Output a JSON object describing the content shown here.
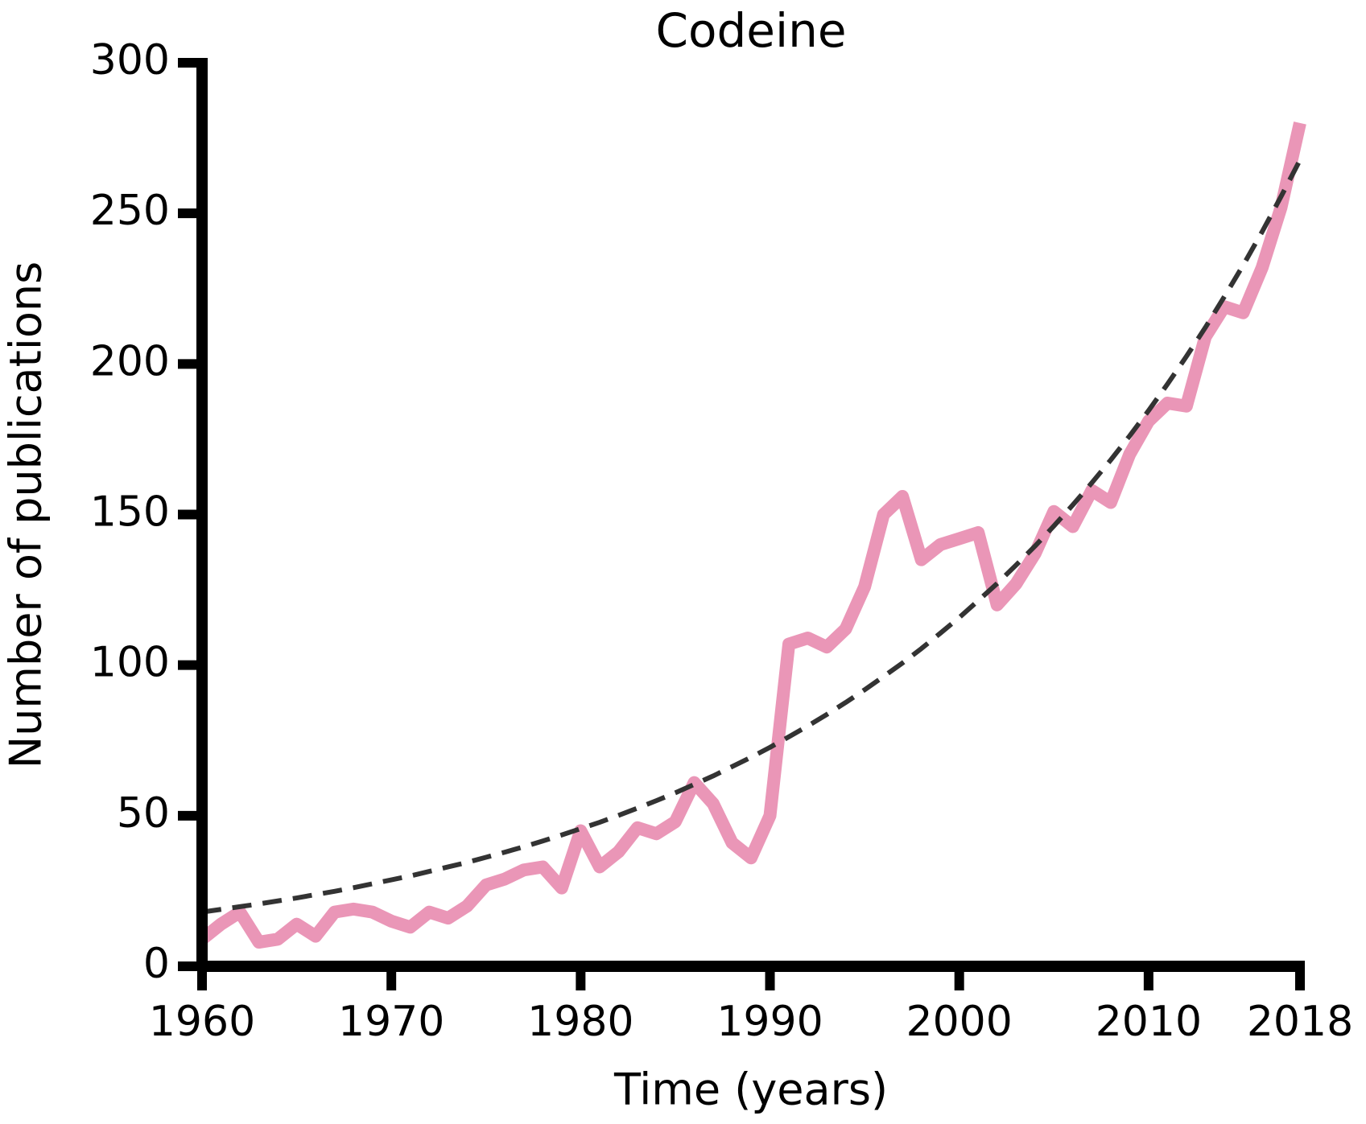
{
  "chart_data": {
    "type": "line",
    "title": "Codeine",
    "x_label": "Time (years)",
    "y_label": "Number of publications",
    "x": [
      1960,
      1961,
      1962,
      1963,
      1964,
      1965,
      1966,
      1967,
      1968,
      1969,
      1970,
      1971,
      1972,
      1973,
      1974,
      1975,
      1976,
      1977,
      1978,
      1979,
      1980,
      1981,
      1982,
      1983,
      1984,
      1985,
      1986,
      1987,
      1988,
      1989,
      1990,
      1991,
      1992,
      1993,
      1994,
      1995,
      1996,
      1997,
      1998,
      1999,
      2000,
      2001,
      2002,
      2003,
      2004,
      2005,
      2006,
      2007,
      2008,
      2009,
      2010,
      2011,
      2012,
      2013,
      2014,
      2015,
      2016,
      2017,
      2018
    ],
    "series": [
      {
        "color": "#ea96b7",
        "style": "solid",
        "values": [
          9,
          14,
          18,
          8,
          9,
          14,
          10,
          18,
          19,
          18,
          15,
          13,
          18,
          16,
          20,
          27,
          29,
          32,
          33,
          26,
          45,
          33,
          38,
          46,
          44,
          48,
          61,
          54,
          41,
          36,
          50,
          107,
          109,
          106,
          112,
          126,
          150,
          156,
          135,
          140,
          142,
          144,
          120,
          127,
          137,
          151,
          146,
          158,
          154,
          170,
          181,
          187,
          186,
          209,
          219,
          217,
          232,
          252,
          280
        ]
      },
      {
        "color": "#333333",
        "style": "dashed",
        "values": [
          18.0,
          18.9,
          19.8,
          20.7,
          21.7,
          22.7,
          23.8,
          24.9,
          26.1,
          27.4,
          28.7,
          30.0,
          31.5,
          33.0,
          34.5,
          36.2,
          37.9,
          39.7,
          41.6,
          43.6,
          45.7,
          47.8,
          50.1,
          52.5,
          55.0,
          57.6,
          60.4,
          63.2,
          66.3,
          69.4,
          72.7,
          76.2,
          79.8,
          83.6,
          87.6,
          91.8,
          96.2,
          100.7,
          105.5,
          110.6,
          115.8,
          121.4,
          127.1,
          133.2,
          139.5,
          146.2,
          153.2,
          160.5,
          168.1,
          176.1,
          184.5,
          193.3,
          202.5,
          212.1,
          222.3,
          232.8,
          243.9,
          255.6,
          267.7
        ]
      }
    ],
    "xlim": [
      1960,
      2018
    ],
    "xticks": [
      1960,
      1970,
      1980,
      1990,
      2000,
      2010,
      2018
    ],
    "ylim": [
      0,
      300
    ],
    "yticks": [
      0,
      50,
      100,
      150,
      200,
      250,
      300
    ]
  }
}
